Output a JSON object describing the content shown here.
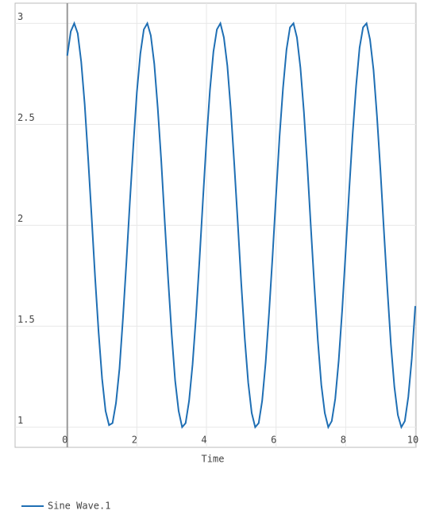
{
  "chart_data": {
    "type": "line",
    "x": [
      0,
      0.1,
      0.2,
      0.3,
      0.4,
      0.5,
      0.6,
      0.7,
      0.8,
      0.9,
      1,
      1.1,
      1.2,
      1.3,
      1.4,
      1.5,
      1.6,
      1.7,
      1.8,
      1.9,
      2,
      2.1,
      2.2,
      2.3,
      2.4,
      2.5,
      2.6,
      2.7,
      2.8,
      2.9,
      3,
      3.1,
      3.2,
      3.3,
      3.4,
      3.5,
      3.6,
      3.7,
      3.8,
      3.9,
      4,
      4.1,
      4.2,
      4.3,
      4.4,
      4.5,
      4.6,
      4.7,
      4.8,
      4.9,
      5,
      5.1,
      5.2,
      5.3,
      5.4,
      5.5,
      5.6,
      5.7,
      5.8,
      5.9,
      6,
      6.1,
      6.2,
      6.3,
      6.4,
      6.5,
      6.6,
      6.7,
      6.8,
      6.9,
      7,
      7.1,
      7.2,
      7.3,
      7.4,
      7.5,
      7.6,
      7.7,
      7.8,
      7.9,
      8,
      8.1,
      8.2,
      8.3,
      8.4,
      8.5,
      8.6,
      8.7,
      8.8,
      8.9,
      9,
      9.1,
      9.2,
      9.3,
      9.4,
      9.5,
      9.6,
      9.7,
      9.8,
      9.9,
      10
    ],
    "series": [
      {
        "name": "Sine Wave.1",
        "color": "#1f6fb4",
        "values": [
          2.84,
          2.96,
          3.0,
          2.95,
          2.81,
          2.6,
          2.33,
          2.04,
          1.74,
          1.47,
          1.24,
          1.08,
          1.01,
          1.02,
          1.12,
          1.29,
          1.54,
          1.82,
          2.12,
          2.4,
          2.66,
          2.85,
          2.97,
          3.0,
          2.94,
          2.8,
          2.58,
          2.32,
          2.02,
          1.73,
          1.46,
          1.23,
          1.08,
          1.0,
          1.02,
          1.13,
          1.31,
          1.55,
          1.83,
          2.13,
          2.42,
          2.67,
          2.86,
          2.97,
          3.0,
          2.93,
          2.79,
          2.57,
          2.3,
          2.01,
          1.71,
          1.44,
          1.22,
          1.07,
          1.0,
          1.02,
          1.13,
          1.32,
          1.57,
          1.85,
          2.15,
          2.44,
          2.68,
          2.87,
          2.98,
          3.0,
          2.93,
          2.78,
          2.56,
          2.29,
          1.99,
          1.7,
          1.43,
          1.21,
          1.07,
          1.0,
          1.03,
          1.14,
          1.33,
          1.58,
          1.87,
          2.17,
          2.45,
          2.69,
          2.88,
          2.98,
          3.0,
          2.92,
          2.77,
          2.54,
          2.27,
          1.97,
          1.68,
          1.41,
          1.2,
          1.06,
          1.0,
          1.03,
          1.15,
          1.34,
          1.6
        ]
      }
    ],
    "x_label": "Time",
    "xlim": [
      -1.5,
      10
    ],
    "xticks": [
      0,
      2,
      4,
      6,
      8,
      10
    ],
    "ylim": [
      0.9,
      3.1
    ],
    "yticks": [
      1,
      1.5,
      2,
      2.5,
      3
    ],
    "grid": true
  }
}
